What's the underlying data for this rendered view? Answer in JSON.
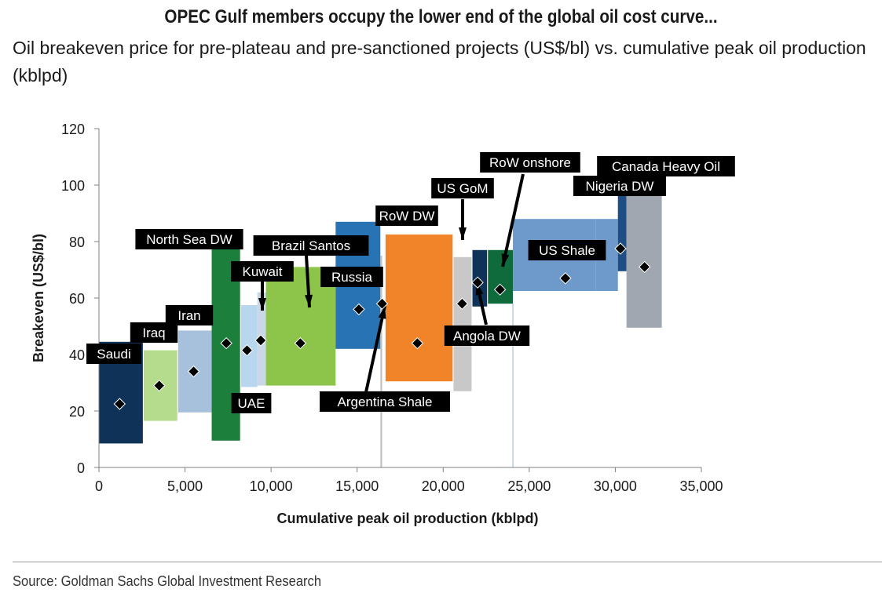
{
  "title": "OPEC Gulf members occupy the lower end of the global oil cost curve...",
  "subtitle": "Oil breakeven price for pre-plateau and pre-sanctioned projects (US$/bl) vs. cumulative peak oil production (kblpd)",
  "source": "Source: Goldman Sachs Global Investment Research",
  "chart_data": {
    "type": "cost-curve (variable-width bar with range boxes)",
    "xlabel": "Cumulative peak oil production (kblpd)",
    "ylabel": "Breakeven (US$/bl)",
    "xlim": [
      0,
      35000
    ],
    "ylim": [
      0,
      120
    ],
    "xticks": [
      0,
      5000,
      10000,
      15000,
      20000,
      25000,
      30000,
      35000
    ],
    "xtick_labels": [
      "0",
      "5,000",
      "10,000",
      "15,000",
      "20,000",
      "25,000",
      "30,000",
      "35,000"
    ],
    "yticks": [
      0,
      20,
      40,
      60,
      80,
      100,
      120
    ],
    "ytick_labels": [
      "0",
      "20",
      "40",
      "60",
      "80",
      "100",
      "120"
    ],
    "grid": false,
    "series": [
      {
        "name": "Saudi",
        "x_start": 0,
        "x_end": 2550,
        "low": 8.5,
        "high": 44.5,
        "breakeven": 22.5,
        "color": "#0e3258"
      },
      {
        "name": "Iraq",
        "x_start": 2600,
        "x_end": 4550,
        "low": 16.5,
        "high": 41.5,
        "breakeven": 29,
        "color": "#b5dc8c"
      },
      {
        "name": "Iran",
        "x_start": 4600,
        "x_end": 6550,
        "low": 19.5,
        "high": 48.5,
        "breakeven": 34,
        "color": "#a7c1dd"
      },
      {
        "name": "North Sea DW",
        "x_start": 6550,
        "x_end": 8200,
        "low": 9.5,
        "high": 79,
        "breakeven": 44,
        "color": "#1c7f3c"
      },
      {
        "name": "UAE",
        "x_start": 8250,
        "x_end": 9200,
        "low": 28.5,
        "high": 57.5,
        "breakeven": 41.5,
        "color": "#b8d7ef"
      },
      {
        "name": "Kuwait",
        "x_start": 9200,
        "x_end": 9700,
        "low": 29,
        "high": 62,
        "breakeven": 45,
        "color": "#c9d7e6"
      },
      {
        "name": "Brazil Santos",
        "x_start": 9700,
        "x_end": 13750,
        "low": 29,
        "high": 71,
        "breakeven": 44,
        "color": "#8dc54b"
      },
      {
        "name": "Russia",
        "x_start": 13750,
        "x_end": 16350,
        "low": 42,
        "high": 87,
        "breakeven": 56,
        "color": "#2873b4"
      },
      {
        "name": "Argentina Shale",
        "x_start": 16350,
        "x_end": 16450,
        "low": 0,
        "high": 75,
        "breakeven": 58,
        "color": "#c0c0c0"
      },
      {
        "name": "RoW DW",
        "x_start": 16650,
        "x_end": 20550,
        "low": 30.5,
        "high": 82.5,
        "breakeven": 44,
        "color": "#f18429"
      },
      {
        "name": "US GoM",
        "x_start": 20600,
        "x_end": 21650,
        "low": 27,
        "high": 74.5,
        "breakeven": 58,
        "color": "#c8c8c8"
      },
      {
        "name": "Angola DW",
        "x_start": 21700,
        "x_end": 22550,
        "low": 57,
        "high": 77,
        "breakeven": 65.5,
        "color": "#0e3258"
      },
      {
        "name": "RoW onshore",
        "x_start": 22600,
        "x_end": 24050,
        "low": 58,
        "high": 77,
        "breakeven": 63,
        "color": "#0f6b3b"
      },
      {
        "name": "US Shale",
        "x_start": 24050,
        "x_end": 28850,
        "low": 62.5,
        "high": 88,
        "breakeven": 67,
        "color": "#6d9acb"
      },
      {
        "name": "US Shale (2)",
        "x_start": 28850,
        "x_end": 30150,
        "low": 62.5,
        "high": 88,
        "breakeven": 67,
        "color": "#6d9acb"
      },
      {
        "name": "Nigeria DW",
        "x_start": 30150,
        "x_end": 30650,
        "low": 69.5,
        "high": 98,
        "breakeven": 77.5,
        "color": "#1f4e85"
      },
      {
        "name": "Canada Heavy Oil",
        "x_start": 30650,
        "x_end": 32700,
        "low": 49.5,
        "high": 98,
        "breakeven": 71,
        "color": "#a0a7b0"
      }
    ],
    "annotations": [
      {
        "text": "Saudi"
      },
      {
        "text": "Iraq"
      },
      {
        "text": "Iran"
      },
      {
        "text": "North Sea DW"
      },
      {
        "text": "UAE"
      },
      {
        "text": "Kuwait"
      },
      {
        "text": "Brazil Santos"
      },
      {
        "text": "Russia"
      },
      {
        "text": "Argentina Shale"
      },
      {
        "text": "RoW DW"
      },
      {
        "text": "US GoM"
      },
      {
        "text": "Angola DW"
      },
      {
        "text": "RoW onshore"
      },
      {
        "text": "US Shale"
      },
      {
        "text": "Nigeria DW"
      },
      {
        "text": "Canada Heavy Oil"
      }
    ]
  }
}
